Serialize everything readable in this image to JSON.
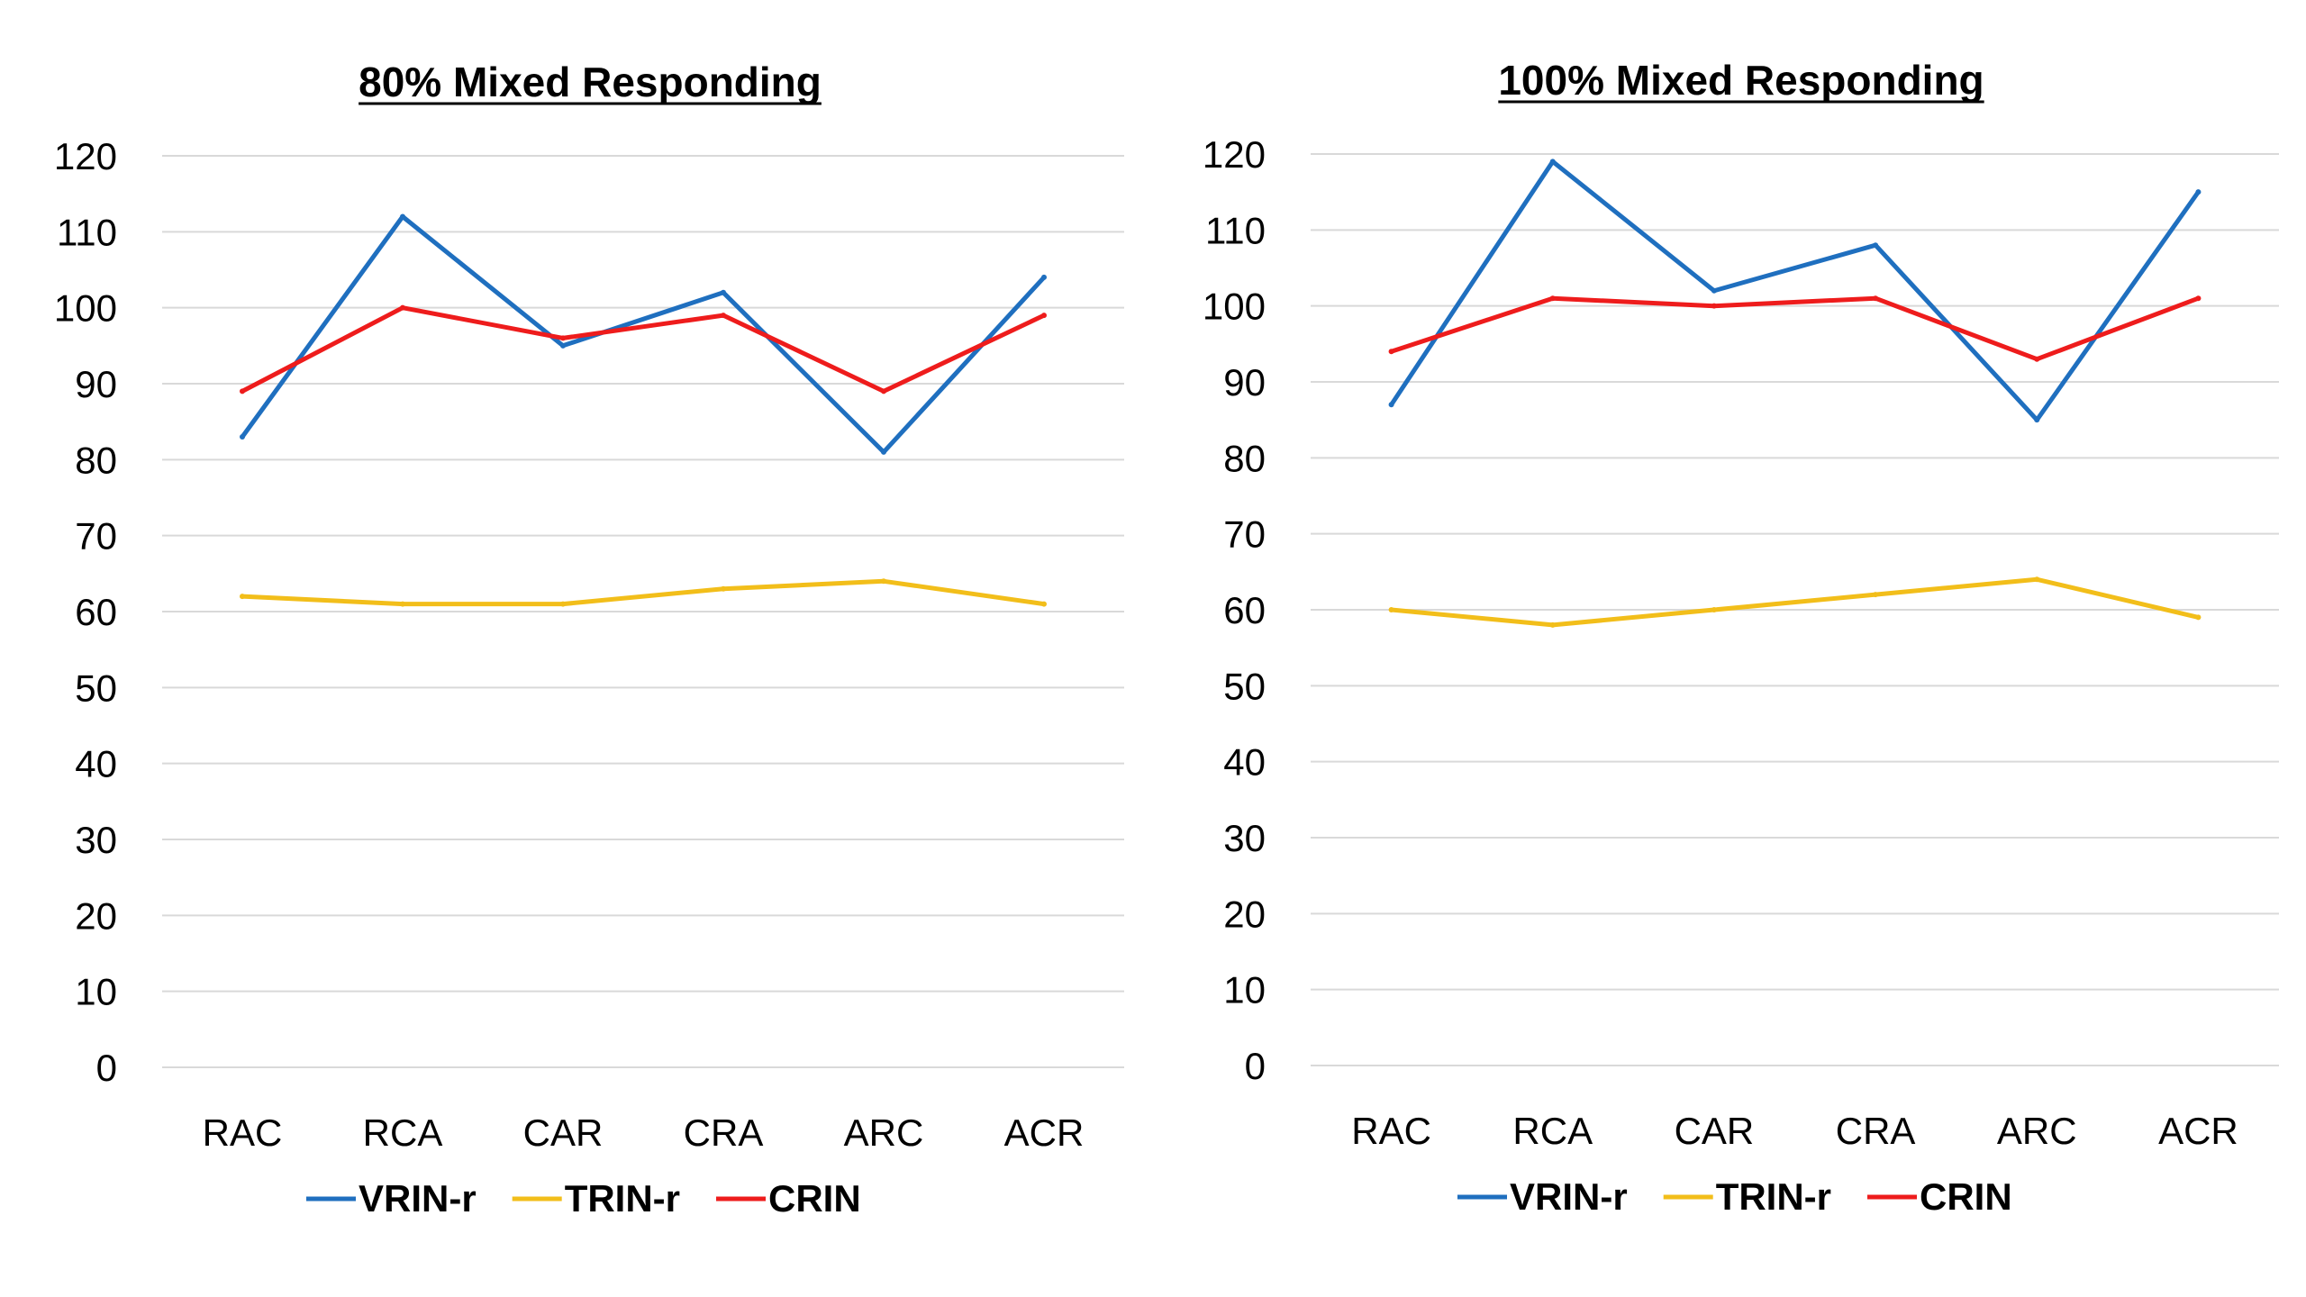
{
  "chart_data": [
    {
      "type": "line",
      "title": "80% Mixed Responding",
      "categories": [
        "RAC",
        "RCA",
        "CAR",
        "CRA",
        "ARC",
        "ACR"
      ],
      "series": [
        {
          "name": "VRIN-r",
          "color": "#1F6FBF",
          "values": [
            83,
            112,
            95,
            102,
            81,
            104
          ]
        },
        {
          "name": "TRIN-r",
          "color": "#F2BE1A",
          "values": [
            62,
            61,
            61,
            63,
            64,
            61
          ]
        },
        {
          "name": "CRIN",
          "color": "#EE1C1C",
          "values": [
            89,
            100,
            96,
            99,
            89,
            99
          ]
        }
      ],
      "ylim": [
        0,
        120
      ],
      "yticks": [
        "0",
        "10",
        "20",
        "30",
        "40",
        "50",
        "60",
        "70",
        "80",
        "90",
        "100",
        "110",
        "120"
      ],
      "grid": true,
      "legend": "bottom"
    },
    {
      "type": "line",
      "title": "100% Mixed Responding",
      "categories": [
        "RAC",
        "RCA",
        "CAR",
        "CRA",
        "ARC",
        "ACR"
      ],
      "series": [
        {
          "name": "VRIN-r",
          "color": "#1F6FBF",
          "values": [
            87,
            119,
            102,
            108,
            85,
            115
          ]
        },
        {
          "name": "TRIN-r",
          "color": "#F2BE1A",
          "values": [
            60,
            58,
            60,
            62,
            64,
            59
          ]
        },
        {
          "name": "CRIN",
          "color": "#EE1C1C",
          "values": [
            94,
            101,
            100,
            101,
            93,
            101
          ]
        }
      ],
      "ylim": [
        0,
        120
      ],
      "yticks": [
        "0",
        "10",
        "20",
        "30",
        "40",
        "50",
        "60",
        "70",
        "80",
        "90",
        "100",
        "110",
        "120"
      ],
      "grid": true,
      "legend": "bottom"
    }
  ]
}
